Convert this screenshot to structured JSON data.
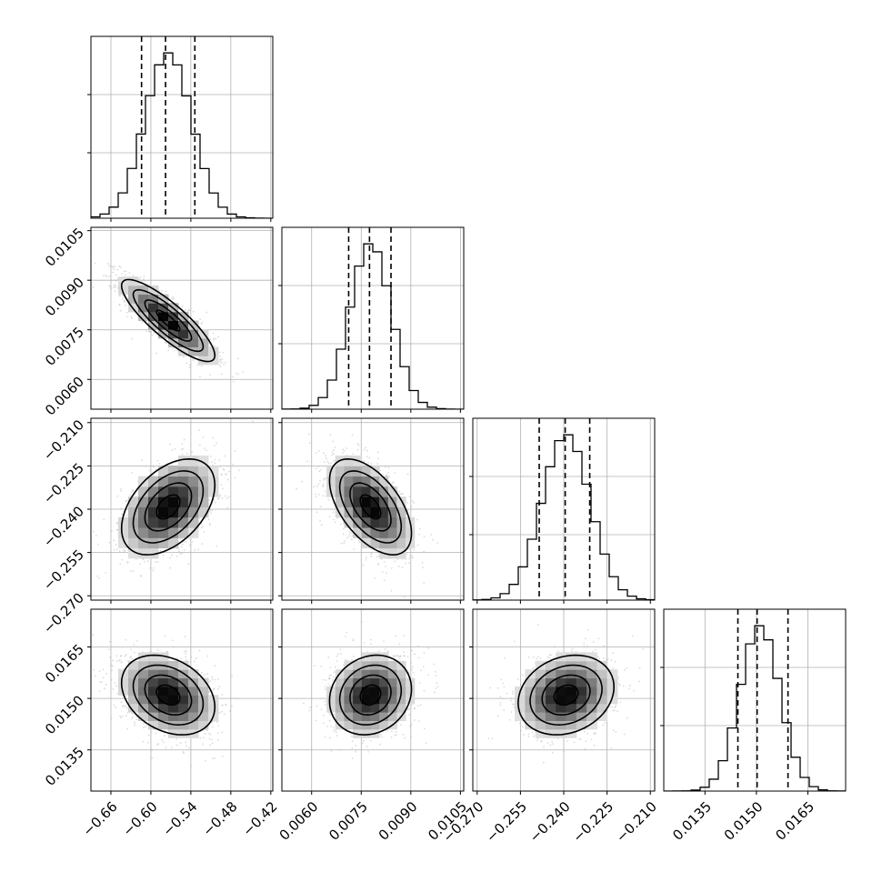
{
  "chart_data": {
    "type": "corner",
    "params": [
      {
        "ticks": [
          -0.66,
          -0.6,
          -0.54,
          -0.48,
          -0.42
        ],
        "tick_labels": [
          "−0.66",
          "−0.60",
          "−0.54",
          "−0.48",
          "−0.42"
        ],
        "range": [
          -0.69,
          -0.417
        ],
        "mean": -0.574,
        "sd": 0.035,
        "quantiles": [
          -0.614,
          -0.578,
          -0.534
        ]
      },
      {
        "ticks": [
          0.006,
          0.0075,
          0.009,
          0.0105
        ],
        "tick_labels": [
          "0.0060",
          "0.0075",
          "0.0090",
          "0.0105"
        ],
        "range": [
          0.0051,
          0.0106
        ],
        "mean": 0.00778,
        "sd": 0.00062,
        "quantiles": [
          0.00712,
          0.00775,
          0.0084
        ]
      },
      {
        "ticks": [
          -0.27,
          -0.255,
          -0.24,
          -0.225,
          -0.21
        ],
        "tick_labels": [
          "−0.270",
          "−0.255",
          "−0.240",
          "−0.225",
          "−0.210"
        ],
        "range": [
          -0.2715,
          -0.2085
        ],
        "mean": -0.2392,
        "sd": 0.0083,
        "quantiles": [
          -0.2485,
          -0.2395,
          -0.231
        ]
      },
      {
        "ticks": [
          0.0135,
          0.015,
          0.0165
        ],
        "tick_labels": [
          "0.0135",
          "0.0150",
          "0.0165"
        ],
        "range": [
          0.0123,
          0.0176
        ],
        "mean": 0.0151,
        "sd": 0.00058,
        "quantiles": [
          0.01446,
          0.01502,
          0.01592
        ]
      }
    ],
    "correlations": [
      [
        1,
        -0.85,
        0.45,
        -0.3
      ],
      [
        -0.85,
        1,
        -0.55,
        0.15
      ],
      [
        0.45,
        -0.55,
        1,
        0.2
      ],
      [
        -0.3,
        0.15,
        0.2,
        1
      ]
    ],
    "grid": true
  }
}
